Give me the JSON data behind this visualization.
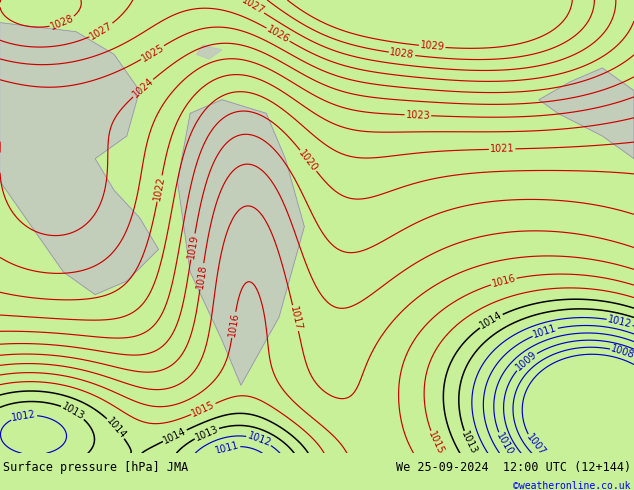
{
  "title_left": "Surface pressure [hPa] JMA",
  "title_right": "We 25-09-2024  12:00 UTC (12+144)",
  "copyright": "©weatheronline.co.uk",
  "bg_color": "#c8f098",
  "bottom_bar_color": "#c8c8c8",
  "red_color": "#cc0000",
  "black_color": "#000000",
  "blue_color": "#0000cc",
  "red_levels": [
    1015,
    1016,
    1017,
    1018,
    1019,
    1020,
    1021,
    1022,
    1023,
    1024,
    1025,
    1026,
    1027,
    1028,
    1029
  ],
  "black_levels": [
    1013,
    1014
  ],
  "blue_levels": [
    1007,
    1008,
    1009,
    1010,
    1011,
    1012
  ],
  "font_size_title": 8.5,
  "font_size_label": 7,
  "font_size_copyright": 7
}
